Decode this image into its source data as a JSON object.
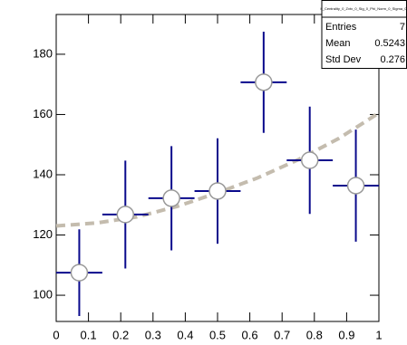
{
  "chart_data": {
    "type": "histogram",
    "bins": [
      0,
      0.1429,
      0.2857,
      0.4286,
      0.5714,
      0.7143,
      0.8571,
      1
    ],
    "values": [
      107.5,
      126.8,
      132.2,
      134.6,
      170.7,
      144.8,
      136.4
    ],
    "errors": [
      14.4,
      17.9,
      17.3,
      17.5,
      16.8,
      17.8,
      18.6
    ],
    "color": "#0a0a8c",
    "fit": {
      "color": "#c4bcae",
      "x": [
        0,
        0.125,
        0.25,
        0.375,
        0.5,
        0.625,
        0.75,
        0.875,
        1
      ],
      "values": [
        123,
        124,
        126,
        129.5,
        134,
        139,
        145,
        152,
        160.5
      ]
    },
    "xlim": [
      0,
      1
    ],
    "xticks": [
      0,
      0.1,
      0.2,
      0.3,
      0.4,
      0.5,
      0.6,
      0.7,
      0.8,
      0.9,
      1
    ],
    "ylim": [
      91.3,
      193.2
    ],
    "yticks": [
      100,
      120,
      140,
      160,
      180
    ],
    "stats": {
      "title": "h_Centrality_0_Zvtx_0_Sig_0_Phi_Norm_0_Sigma_0",
      "rows": [
        {
          "label": "Entries",
          "value": 7
        },
        {
          "label": "Mean",
          "value": 0.5243
        },
        {
          "label": "Std Dev",
          "value": 0.276
        }
      ]
    }
  }
}
